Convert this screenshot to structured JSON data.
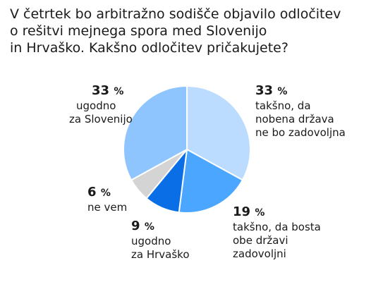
{
  "title_lines": [
    "V četrtek bo arbitražno sodišče objavilo odločitev",
    "o rešitvi mejnega spora med Slovenijo",
    "in Hrvaško. Kakšno odločitev pričakujete?"
  ],
  "chart_data": {
    "type": "pie",
    "title": "V četrtek bo arbitražno sodišče objavilo odločitev o rešitvi mejnega spora med Slovenijo in Hrvaško. Kakšno odločitev pričakujete?",
    "unit": "%",
    "slices": [
      {
        "value": 33,
        "value_text": "33",
        "label_lines": [
          "takšno, da",
          "nobena država",
          "ne bo zadovoljna"
        ],
        "color": "#bcdcff"
      },
      {
        "value": 19,
        "value_text": "19",
        "label_lines": [
          "takšno, da bosta",
          "obe državi",
          "zadovoljni"
        ],
        "color": "#4aa6ff"
      },
      {
        "value": 9,
        "value_text": "9",
        "label_lines": [
          "ugodno",
          "za Hrvaško"
        ],
        "color": "#0a6fe6"
      },
      {
        "value": 6,
        "value_text": "6",
        "label_lines": [
          "ne vem"
        ],
        "color": "#d4d4d4"
      },
      {
        "value": 33,
        "value_text": "33",
        "label_lines": [
          "ugodno",
          "za Slovenijo"
        ],
        "color": "#8ec5ff"
      }
    ]
  }
}
